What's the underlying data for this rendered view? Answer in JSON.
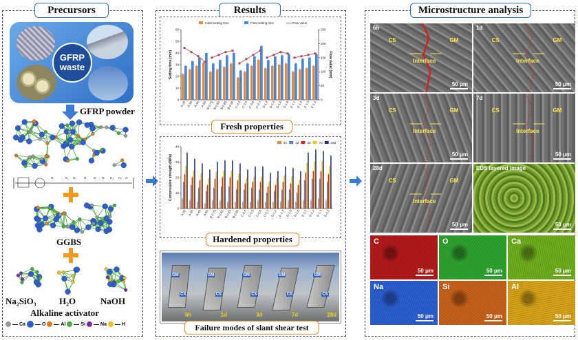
{
  "precursors": {
    "title": "Precursors",
    "waste_label": "GFRP\nwaste",
    "powder_label": "GFRP powder",
    "ggbs_label": "GGBS",
    "na2sio3_label": "Na₂SiO₃",
    "h2o_label": "H₂O",
    "naoh_label": "NaOH",
    "activator_label": "Alkaline activator",
    "legend": [
      {
        "sym": "Ca",
        "color": "#9a9a9a"
      },
      {
        "sym": "O",
        "color": "#2f5fc9"
      },
      {
        "sym": "Al",
        "color": "#e07a1f"
      },
      {
        "sym": "Si",
        "color": "#4aaa3a"
      },
      {
        "sym": "Na",
        "color": "#7a2fa0"
      },
      {
        "sym": "H",
        "color": "#f0c020"
      }
    ],
    "polymer_labels": [
      "O",
      "H₂",
      "H₂",
      "O",
      "O",
      "O",
      "H₂",
      "H₂",
      "O"
    ]
  },
  "results": {
    "title": "Results",
    "fresh_label": "Fresh properties",
    "hardened_label": "Hardened properties",
    "failure_label": "Failure modes of slant shear test",
    "failure_tags": [
      "6h",
      "1d",
      "3d",
      "7d",
      "28d"
    ],
    "gm_tag": "GM",
    "cs_tag": "CS"
  },
  "chart_data": [
    {
      "type": "bar",
      "title": "",
      "categories": [
        "A-20",
        "A-30",
        "A-40",
        "A-50",
        "B-0.75",
        "B-0.80",
        "B-0.85",
        "B-0.90",
        "C-0.4",
        "C-0.5",
        "C-0.6",
        "C-0.7",
        "D-1.2",
        "D-1.4",
        "D-1.6",
        "D-1.8",
        "E-1.1",
        "E-1.2",
        "E-1.3",
        "E-1.5"
      ],
      "series": [
        {
          "name": "Initial setting time",
          "color": "#e8893a",
          "values": [
            22,
            26,
            29,
            32,
            24,
            26,
            28,
            31,
            19,
            24,
            29,
            34,
            27,
            29,
            30,
            31,
            24,
            26,
            27,
            29
          ]
        },
        {
          "name": "Final setting time",
          "color": "#4a86d4",
          "values": [
            29,
            33,
            36,
            40,
            31,
            34,
            38,
            40,
            25,
            31,
            37,
            46,
            34,
            37,
            38,
            39,
            31,
            35,
            36,
            39
          ]
        },
        {
          "name": "Flow value",
          "color": "#b4474a",
          "type": "line",
          "values": [
            185,
            170,
            155,
            135,
            150,
            160,
            170,
            175,
            130,
            145,
            160,
            175,
            150,
            160,
            170,
            165,
            150,
            155,
            160,
            165
          ]
        }
      ],
      "ylabel": "Setting time (min)",
      "y2label": "Flow value (mm)",
      "ylim": [
        0,
        60
      ],
      "y2lim": [
        0,
        250
      ],
      "yticks": [
        0,
        10,
        20,
        30,
        40,
        50,
        60
      ],
      "y2ticks": [
        0,
        50,
        100,
        150,
        200,
        250
      ],
      "legend_position": "top"
    },
    {
      "type": "bar",
      "title": "",
      "categories": [
        "A-20",
        "A-30",
        "A-40",
        "A-50",
        "B-0.75",
        "B-0.80",
        "B-0.85",
        "B-0.90",
        "C-0.4",
        "C-0.5",
        "C-0.6",
        "C-0.7",
        "D-1.2",
        "D-1.4",
        "D-1.6",
        "D-1.8",
        "E-1.1",
        "E-1.2",
        "E-1.3",
        "E-1.5"
      ],
      "series": [
        {
          "name": "6h",
          "color": "#e8893a",
          "values": [
            6,
            5,
            4,
            3,
            5,
            5,
            4,
            4,
            4,
            4,
            5,
            4,
            4,
            4,
            5,
            4,
            5,
            5,
            6,
            5
          ]
        },
        {
          "name": "1d",
          "color": "#4a86d4",
          "values": [
            17,
            15,
            13,
            11,
            13,
            14,
            14,
            12,
            12,
            13,
            12,
            10,
            11,
            12,
            12,
            10,
            18,
            19,
            19,
            17
          ]
        },
        {
          "name": "3d",
          "color": "#d42c20",
          "values": [
            22,
            20,
            18,
            15,
            19,
            20,
            20,
            18,
            16,
            17,
            17,
            14,
            15,
            17,
            16,
            15,
            23,
            24,
            24,
            22
          ]
        },
        {
          "name": "7d",
          "color": "#f2c21a",
          "values": [
            27,
            24,
            22,
            19,
            23,
            24,
            24,
            22,
            19,
            20,
            20,
            17,
            19,
            21,
            20,
            18,
            29,
            30,
            30,
            27
          ]
        },
        {
          "name": "28d",
          "color": "#27337a",
          "values": [
            36,
            32,
            29,
            25,
            30,
            31,
            31,
            29,
            25,
            27,
            27,
            23,
            24,
            27,
            26,
            24,
            36,
            38,
            37,
            34
          ]
        }
      ],
      "ylabel": "Compressive strength (MPa)",
      "ylim": [
        0,
        40
      ],
      "yticks": [
        0,
        10,
        20,
        30,
        40
      ],
      "legend_position": "top-right"
    }
  ],
  "microstructure": {
    "title": "Microstructure analysis",
    "tiles": [
      {
        "age": "6h",
        "cs": "CS",
        "gm": "GM",
        "iface": "Interface",
        "scale": "50 μm"
      },
      {
        "age": "1d",
        "cs": "CS",
        "gm": "GM",
        "iface": "Interface",
        "scale": "50 μm"
      },
      {
        "age": "3d",
        "cs": "CS",
        "gm": "GM",
        "iface": "Interface",
        "scale": "50 μm"
      },
      {
        "age": "7d",
        "cs": "CS",
        "gm": "GM",
        "iface": "Interface",
        "scale": "50 μm"
      },
      {
        "age": "28d",
        "cs": "CS",
        "gm": "GM",
        "iface": "Interface",
        "scale": "50 μm"
      },
      {
        "age": "EDS layered image",
        "cs": "",
        "gm": "",
        "iface": "",
        "scale": "50 μm"
      }
    ],
    "eds": [
      {
        "el": "C",
        "scale": "50 μm",
        "color": "#b51a1a"
      },
      {
        "el": "O",
        "scale": "50 μm",
        "color": "#2fa32f"
      },
      {
        "el": "Ca",
        "scale": "50 μm",
        "color": "#6fae1c"
      },
      {
        "el": "Na",
        "scale": "50 μm",
        "color": "#2c5fd4"
      },
      {
        "el": "Si",
        "scale": "50 μm",
        "color": "#c9621a"
      },
      {
        "el": "Al",
        "scale": "50 μm",
        "color": "#d6a319"
      }
    ]
  }
}
